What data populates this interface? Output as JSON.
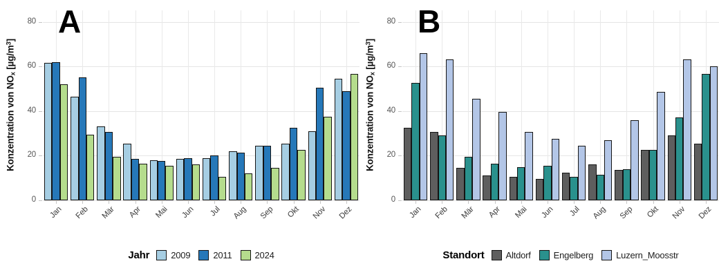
{
  "figure": {
    "y_axis_title": "Konzentration von NOₓ [µg/m³]",
    "months": [
      "Jan",
      "Feb",
      "Mär",
      "Apr",
      "Mai",
      "Jun",
      "Jul",
      "Aug",
      "Sep",
      "Okt",
      "Nov",
      "Dez"
    ]
  },
  "chart_data": [
    {
      "type": "bar",
      "panel_label": "A",
      "title": "",
      "xlabel": "",
      "ylabel": "Konzentration von NOₓ [µg/m³]",
      "ylabel_parts": [
        {
          "t": "Konzentration von NO"
        },
        {
          "t": "x",
          "style": "sub"
        },
        {
          "t": " [µg/m"
        },
        {
          "t": "3",
          "style": "sup"
        },
        {
          "t": "]"
        }
      ],
      "ylim": [
        0,
        85
      ],
      "yticks": [
        0,
        20,
        40,
        60,
        80
      ],
      "grid": true,
      "legend_title": "Jahr",
      "legend_position": "bottom",
      "categories": [
        "Jan",
        "Feb",
        "Mär",
        "Apr",
        "Mai",
        "Jun",
        "Jul",
        "Aug",
        "Sep",
        "Okt",
        "Nov",
        "Dez"
      ],
      "series": [
        {
          "name": "2009",
          "color": "#a6cee3",
          "values": [
            61.5,
            46.5,
            33,
            25.5,
            18,
            18.5,
            19,
            22,
            24.5,
            25.5,
            31,
            54.5
          ]
        },
        {
          "name": "2011",
          "color": "#2678b9",
          "values": [
            62,
            55,
            30.5,
            18.5,
            17.5,
            19,
            20,
            21.5,
            24.5,
            32.5,
            50.5,
            49
          ]
        },
        {
          "name": "2024",
          "color": "#b5dc8d",
          "values": [
            52,
            29.5,
            19.5,
            16.5,
            15.5,
            16,
            10.5,
            12,
            14.5,
            22.5,
            37.5,
            56.5
          ]
        }
      ]
    },
    {
      "type": "bar",
      "panel_label": "B",
      "title": "",
      "xlabel": "",
      "ylabel": "Konzentration von NOₓ [µg/m³]",
      "ylabel_parts": [
        {
          "t": "Konzentration von NO"
        },
        {
          "t": "x",
          "style": "sub"
        },
        {
          "t": " [µg/m"
        },
        {
          "t": "3",
          "style": "sup"
        },
        {
          "t": "]"
        }
      ],
      "ylim": [
        0,
        85
      ],
      "yticks": [
        0,
        20,
        40,
        60,
        80
      ],
      "grid": true,
      "legend_title": "Standort",
      "legend_position": "bottom",
      "categories": [
        "Jan",
        "Feb",
        "Mär",
        "Apr",
        "Mai",
        "Jun",
        "Jul",
        "Aug",
        "Sep",
        "Okt",
        "Nov",
        "Dez"
      ],
      "series": [
        {
          "name": "Altdorf",
          "color": "#5e5e5e",
          "values": [
            32.5,
            30.5,
            14.5,
            11,
            10.5,
            9.5,
            12.5,
            16,
            13.5,
            22.5,
            29,
            25.5
          ]
        },
        {
          "name": "Engelberg",
          "color": "#2a918d",
          "values": [
            52.5,
            29,
            19.5,
            16.5,
            15,
            15.5,
            10.5,
            11.5,
            14,
            22.5,
            37,
            56.5
          ]
        },
        {
          "name": "Luzern_Moosstr",
          "color": "#b3c6e7",
          "values": [
            66,
            63,
            45.5,
            39.5,
            30.5,
            27.5,
            24.5,
            27,
            36,
            48.5,
            63,
            60
          ]
        }
      ]
    }
  ]
}
